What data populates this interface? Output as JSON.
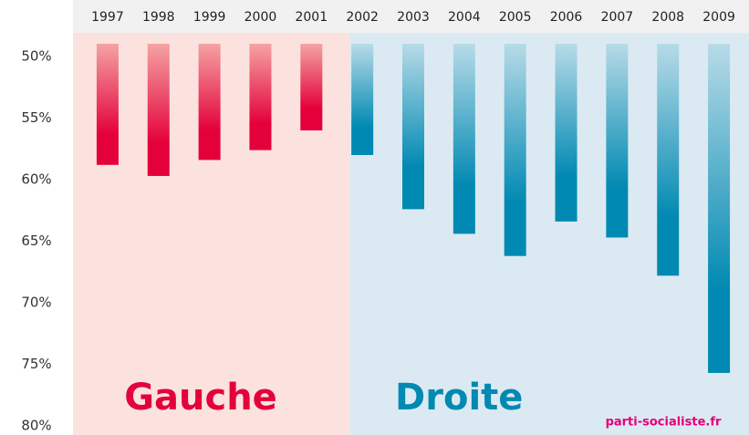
{
  "chart_data": {
    "type": "bar",
    "categories": [
      "1997",
      "1998",
      "1999",
      "2000",
      "2001",
      "2002",
      "2003",
      "2004",
      "2005",
      "2006",
      "2007",
      "2008",
      "2009"
    ],
    "values": [
      58.8,
      59.7,
      58.4,
      57.6,
      56.0,
      58.0,
      62.4,
      64.4,
      66.2,
      63.4,
      64.7,
      67.8,
      75.7
    ],
    "ylim": [
      48,
      80
    ],
    "yticks": [
      {
        "value": 50,
        "label": "50%"
      },
      {
        "value": 55,
        "label": "55%"
      },
      {
        "value": 60,
        "label": "60%"
      },
      {
        "value": 65,
        "label": "65%"
      },
      {
        "value": 70,
        "label": "70%"
      },
      {
        "value": 75,
        "label": "75%"
      },
      {
        "value": 80,
        "label": "80%"
      }
    ],
    "y_inverted": true,
    "regions": [
      {
        "label": "Gauche",
        "from": "1997",
        "to": "2001",
        "color": "#e4003a",
        "background": "#fbe2df",
        "bar_top_color": "#f4a3a3"
      },
      {
        "label": "Droite",
        "from": "2002",
        "to": "2009",
        "color": "#0089b2",
        "background": "#dbeaf2",
        "bar_top_color": "#b8dbe8"
      }
    ],
    "source": "parti-socialiste.fr"
  }
}
